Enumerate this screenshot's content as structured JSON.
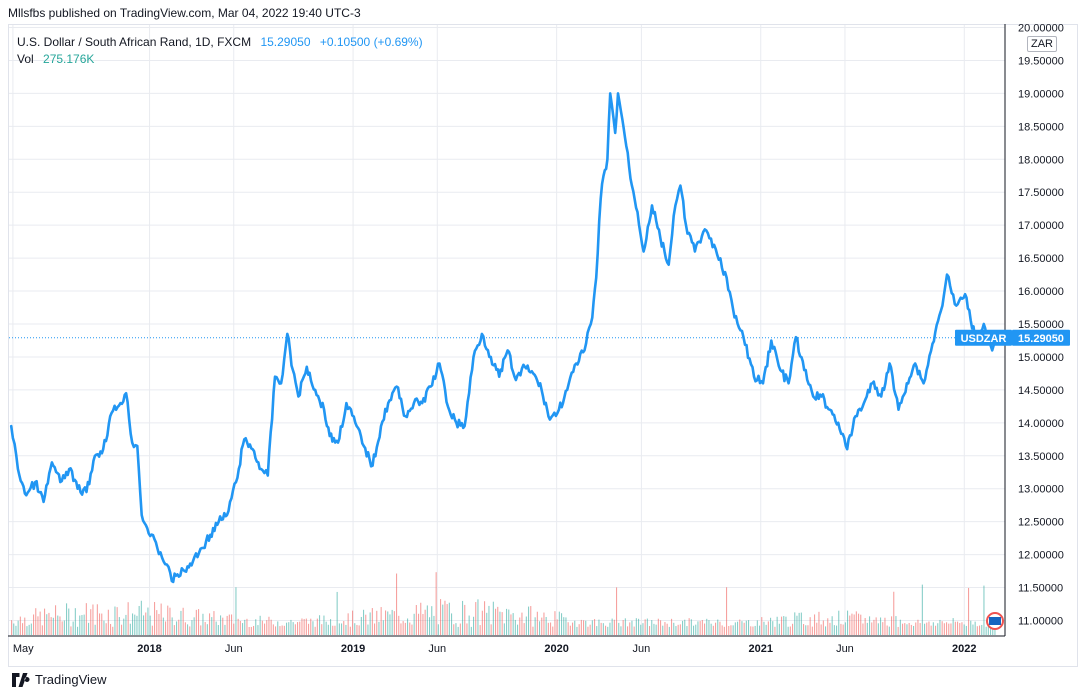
{
  "caption": "Mllsfbs published on TradingView.com, Mar 04, 2022 19:40 UTC-3",
  "legend": {
    "symbol_desc": "U.S. Dollar / South African Rand, 1D, FXCM",
    "last": "15.29050",
    "change": "+0.10500 (+0.69%)",
    "vol_label": "Vol",
    "vol_value": "275.176K"
  },
  "axis_currency": "ZAR",
  "price_badge": {
    "symbol": "USDZAR",
    "value": "15.29050"
  },
  "footer": {
    "brand": "TradingView"
  },
  "colors": {
    "line": "#2196f3",
    "grid": "#e9ebf0",
    "vol_up": "#26a69a",
    "vol_down": "#ef5350",
    "badge": "#2196f3"
  },
  "chart_data": {
    "type": "line",
    "symbol": "USDZAR",
    "interval": "1D",
    "y_ticks": [
      "11.00000",
      "11.50000",
      "12.00000",
      "12.50000",
      "13.00000",
      "13.50000",
      "14.00000",
      "14.50000",
      "15.00000",
      "15.50000",
      "16.00000",
      "16.50000",
      "17.00000",
      "17.50000",
      "18.00000",
      "18.50000",
      "19.00000",
      "19.50000",
      "20.00000"
    ],
    "ylim": [
      10.9,
      20.1
    ],
    "x_ticks": [
      "May",
      "2018",
      "Jun",
      "2019",
      "Jun",
      "2020",
      "Jun",
      "2021",
      "Jun",
      "2022"
    ],
    "series": [
      {
        "name": "USDZAR",
        "points": [
          [
            "2017-04-28",
            13.95
          ],
          [
            "2017-05-10",
            13.3
          ],
          [
            "2017-05-25",
            12.9
          ],
          [
            "2017-06-10",
            13.1
          ],
          [
            "2017-06-25",
            12.8
          ],
          [
            "2017-07-10",
            13.4
          ],
          [
            "2017-07-25",
            13.1
          ],
          [
            "2017-08-10",
            13.3
          ],
          [
            "2017-08-25",
            13.0
          ],
          [
            "2017-09-10",
            12.95
          ],
          [
            "2017-09-25",
            13.5
          ],
          [
            "2017-10-10",
            13.6
          ],
          [
            "2017-10-25",
            14.15
          ],
          [
            "2017-11-10",
            14.3
          ],
          [
            "2017-11-20",
            14.45
          ],
          [
            "2017-12-01",
            13.7
          ],
          [
            "2017-12-10",
            13.65
          ],
          [
            "2017-12-18",
            12.6
          ],
          [
            "2017-12-28",
            12.4
          ],
          [
            "2018-01-15",
            12.1
          ],
          [
            "2018-02-01",
            11.85
          ],
          [
            "2018-02-10",
            11.6
          ],
          [
            "2018-02-20",
            11.7
          ],
          [
            "2018-03-05",
            11.75
          ],
          [
            "2018-03-20",
            11.9
          ],
          [
            "2018-04-05",
            12.1
          ],
          [
            "2018-04-20",
            12.3
          ],
          [
            "2018-05-05",
            12.5
          ],
          [
            "2018-05-20",
            12.6
          ],
          [
            "2018-06-05",
            13.1
          ],
          [
            "2018-06-20",
            13.75
          ],
          [
            "2018-07-05",
            13.6
          ],
          [
            "2018-07-20",
            13.3
          ],
          [
            "2018-08-01",
            13.2
          ],
          [
            "2018-08-14",
            14.7
          ],
          [
            "2018-08-25",
            14.6
          ],
          [
            "2018-09-05",
            15.35
          ],
          [
            "2018-09-15",
            14.8
          ],
          [
            "2018-09-25",
            14.4
          ],
          [
            "2018-10-10",
            14.85
          ],
          [
            "2018-10-25",
            14.5
          ],
          [
            "2018-11-10",
            14.2
          ],
          [
            "2018-11-20",
            13.8
          ],
          [
            "2018-12-05",
            13.7
          ],
          [
            "2018-12-20",
            14.3
          ],
          [
            "2019-01-05",
            14.0
          ],
          [
            "2019-01-20",
            13.65
          ],
          [
            "2019-02-05",
            13.35
          ],
          [
            "2019-02-20",
            13.95
          ],
          [
            "2019-03-05",
            14.3
          ],
          [
            "2019-03-20",
            14.55
          ],
          [
            "2019-04-05",
            14.1
          ],
          [
            "2019-04-20",
            14.3
          ],
          [
            "2019-05-05",
            14.3
          ],
          [
            "2019-05-20",
            14.55
          ],
          [
            "2019-06-05",
            14.9
          ],
          [
            "2019-06-20",
            14.25
          ],
          [
            "2019-07-05",
            14.0
          ],
          [
            "2019-07-20",
            13.95
          ],
          [
            "2019-08-05",
            15.0
          ],
          [
            "2019-08-20",
            15.35
          ],
          [
            "2019-09-05",
            15.0
          ],
          [
            "2019-09-20",
            14.7
          ],
          [
            "2019-10-05",
            15.1
          ],
          [
            "2019-10-20",
            14.65
          ],
          [
            "2019-11-05",
            14.85
          ],
          [
            "2019-11-20",
            14.75
          ],
          [
            "2019-12-05",
            14.5
          ],
          [
            "2019-12-20",
            14.05
          ],
          [
            "2020-01-05",
            14.2
          ],
          [
            "2020-01-20",
            14.5
          ],
          [
            "2020-02-05",
            14.9
          ],
          [
            "2020-02-20",
            15.1
          ],
          [
            "2020-03-05",
            15.6
          ],
          [
            "2020-03-12",
            16.2
          ],
          [
            "2020-03-20",
            17.4
          ],
          [
            "2020-03-25",
            17.75
          ],
          [
            "2020-04-01",
            18.0
          ],
          [
            "2020-04-06",
            19.0
          ],
          [
            "2020-04-15",
            18.4
          ],
          [
            "2020-04-20",
            19.0
          ],
          [
            "2020-04-28",
            18.6
          ],
          [
            "2020-05-05",
            18.2
          ],
          [
            "2020-05-15",
            17.6
          ],
          [
            "2020-05-25",
            17.2
          ],
          [
            "2020-06-05",
            16.6
          ],
          [
            "2020-06-20",
            17.3
          ],
          [
            "2020-07-05",
            16.8
          ],
          [
            "2020-07-20",
            16.4
          ],
          [
            "2020-08-01",
            17.3
          ],
          [
            "2020-08-10",
            17.6
          ],
          [
            "2020-08-20",
            17.0
          ],
          [
            "2020-09-05",
            16.6
          ],
          [
            "2020-09-20",
            16.9
          ],
          [
            "2020-10-01",
            16.8
          ],
          [
            "2020-10-15",
            16.55
          ],
          [
            "2020-11-01",
            16.2
          ],
          [
            "2020-11-15",
            15.6
          ],
          [
            "2020-12-01",
            15.3
          ],
          [
            "2020-12-20",
            14.7
          ],
          [
            "2021-01-05",
            14.6
          ],
          [
            "2021-01-20",
            15.25
          ],
          [
            "2021-02-05",
            14.8
          ],
          [
            "2021-02-20",
            14.6
          ],
          [
            "2021-03-05",
            15.3
          ],
          [
            "2021-03-20",
            14.8
          ],
          [
            "2021-04-05",
            14.4
          ],
          [
            "2021-04-20",
            14.4
          ],
          [
            "2021-05-05",
            14.2
          ],
          [
            "2021-05-20",
            14.0
          ],
          [
            "2021-06-05",
            13.6
          ],
          [
            "2021-06-20",
            14.1
          ],
          [
            "2021-07-05",
            14.3
          ],
          [
            "2021-07-20",
            14.6
          ],
          [
            "2021-08-05",
            14.4
          ],
          [
            "2021-08-20",
            14.9
          ],
          [
            "2021-09-05",
            14.2
          ],
          [
            "2021-09-20",
            14.6
          ],
          [
            "2021-10-05",
            14.9
          ],
          [
            "2021-10-20",
            14.6
          ],
          [
            "2021-11-05",
            15.2
          ],
          [
            "2021-11-20",
            15.7
          ],
          [
            "2021-12-01",
            16.25
          ],
          [
            "2021-12-15",
            15.8
          ],
          [
            "2022-01-05",
            15.9
          ],
          [
            "2022-01-20",
            15.3
          ],
          [
            "2022-02-05",
            15.5
          ],
          [
            "2022-02-20",
            15.1
          ],
          [
            "2022-03-04",
            15.29
          ]
        ]
      }
    ],
    "volume": {
      "label": "Vol",
      "last": "275.176K"
    },
    "grid": true,
    "last_price_line": 15.2905
  }
}
